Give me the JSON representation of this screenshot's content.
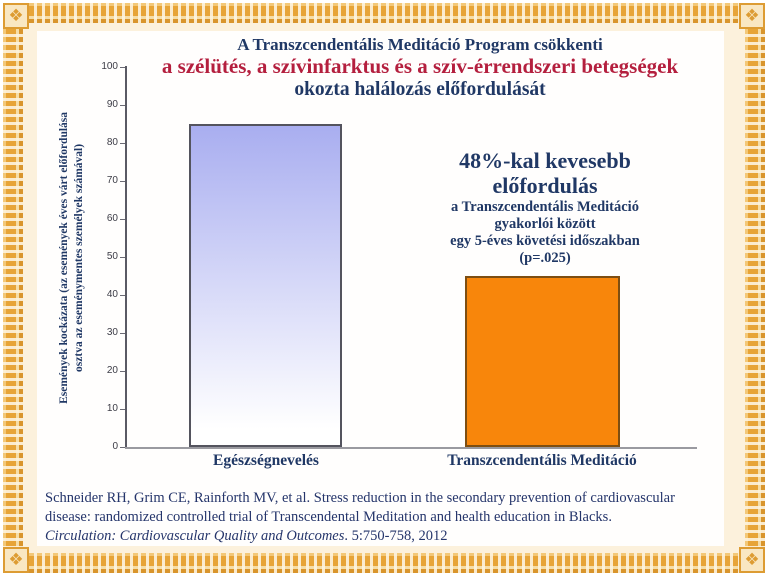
{
  "frame": {
    "gold_color": "#e7a437",
    "cream_color": "#fcf1dc",
    "corner_ornament": "❖"
  },
  "title": {
    "line1": "A Transzcendentális Meditáció Program csökkenti",
    "line2": "a szélütés, a szívinfarktus és a szív-érrendszeri betegségek",
    "line3": "okozta halálozás előfordulását",
    "navy_color": "#203865",
    "red_color": "#b41f3e"
  },
  "chart_data": {
    "type": "bar",
    "categories": [
      "Egészségnevelés",
      "Transzcendentális Meditáció"
    ],
    "values": [
      85,
      45
    ],
    "title": "",
    "xlabel": "",
    "ylabel_line1": "Események kockázata (az események éves várt előfordulása",
    "ylabel_line2": "osztva az eseménymentes személyek számával)",
    "ylim": [
      0,
      100
    ],
    "yticks": [
      0,
      10,
      20,
      30,
      40,
      50,
      60,
      70,
      80,
      90,
      100
    ],
    "grid": false,
    "legend": false,
    "bar_styles": [
      {
        "fill_top": "#a9aef0",
        "fill_bottom": "#ffffff",
        "border": "#54545e"
      },
      {
        "fill": "#f8860b",
        "border": "#7d4e12"
      }
    ]
  },
  "annotation": {
    "headline1": "48%-kal kevesebb",
    "headline2": "előfordulás",
    "sub1": "a Transzcendentális Meditáció",
    "sub2": "gyakorlói között",
    "sub3": "egy 5-éves követési időszakban",
    "sub4": "(p=.025)"
  },
  "citation": {
    "line1": "Schneider RH, Grim CE, Rainforth MV, et al.  Stress reduction in the secondary prevention of cardiovascular",
    "line2": "disease: randomized controlled trial of Transcendental Meditation and health education in Blacks.",
    "journal_italic": "Circulation: Cardiovascular Quality and Outcomes",
    "journal_tail": ". 5:750-758, 2012"
  }
}
